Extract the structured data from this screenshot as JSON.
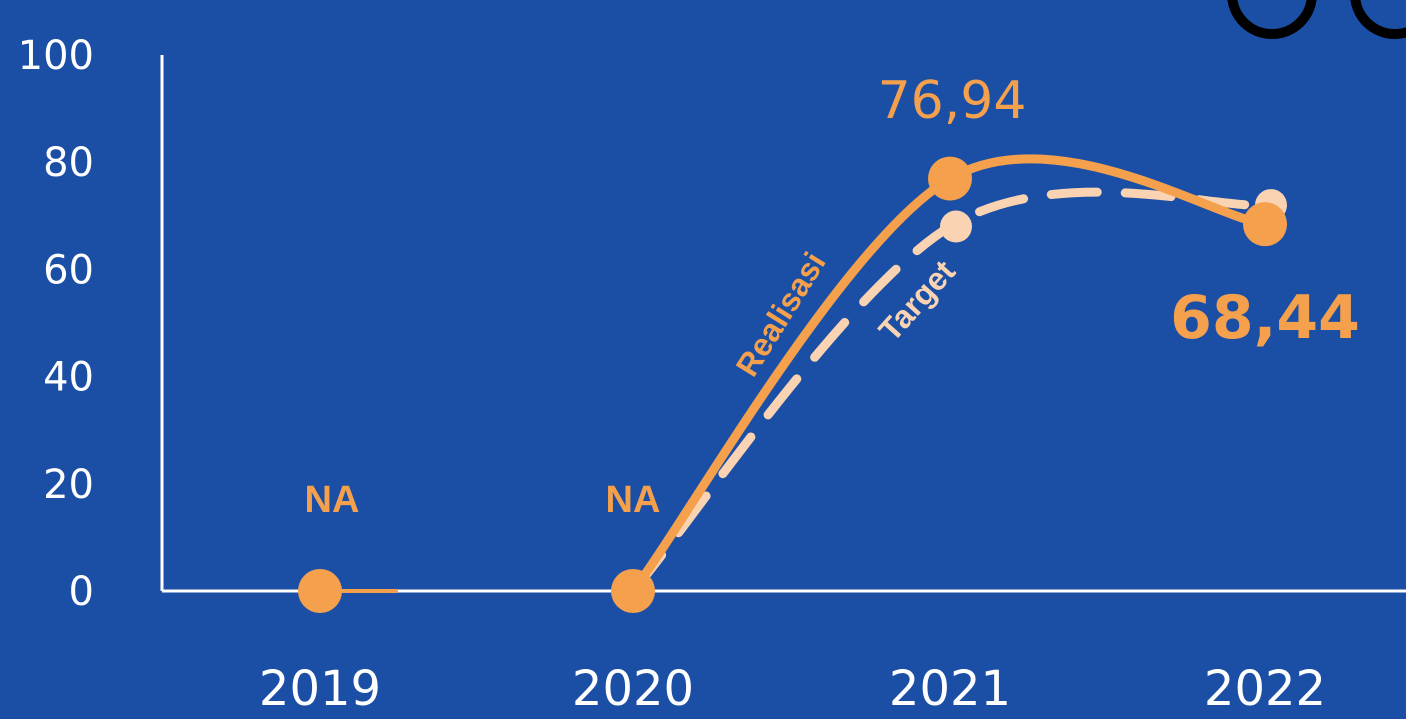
{
  "chart_data": {
    "type": "line",
    "categories": [
      "2019",
      "2020",
      "2021",
      "2022"
    ],
    "ylim": [
      0,
      100
    ],
    "yticks": [
      "0",
      "20",
      "40",
      "60",
      "80",
      "100"
    ],
    "grid": false,
    "series": [
      {
        "name": "Realisasi",
        "values": [
          0,
          0,
          76.94,
          68.44
        ],
        "color": "#f5a04c",
        "style": "solid",
        "labels": [
          "NA",
          "NA",
          "76,94",
          "68,44"
        ]
      },
      {
        "name": "Target",
        "values": [
          null,
          0,
          68,
          72
        ],
        "color": "#f9d3b2",
        "style": "dashed"
      }
    ]
  },
  "colors": {
    "background": "#1b4fa6",
    "axis": "#ffffff",
    "realisasi": "#f5a04c",
    "target": "#f9d3b2"
  }
}
